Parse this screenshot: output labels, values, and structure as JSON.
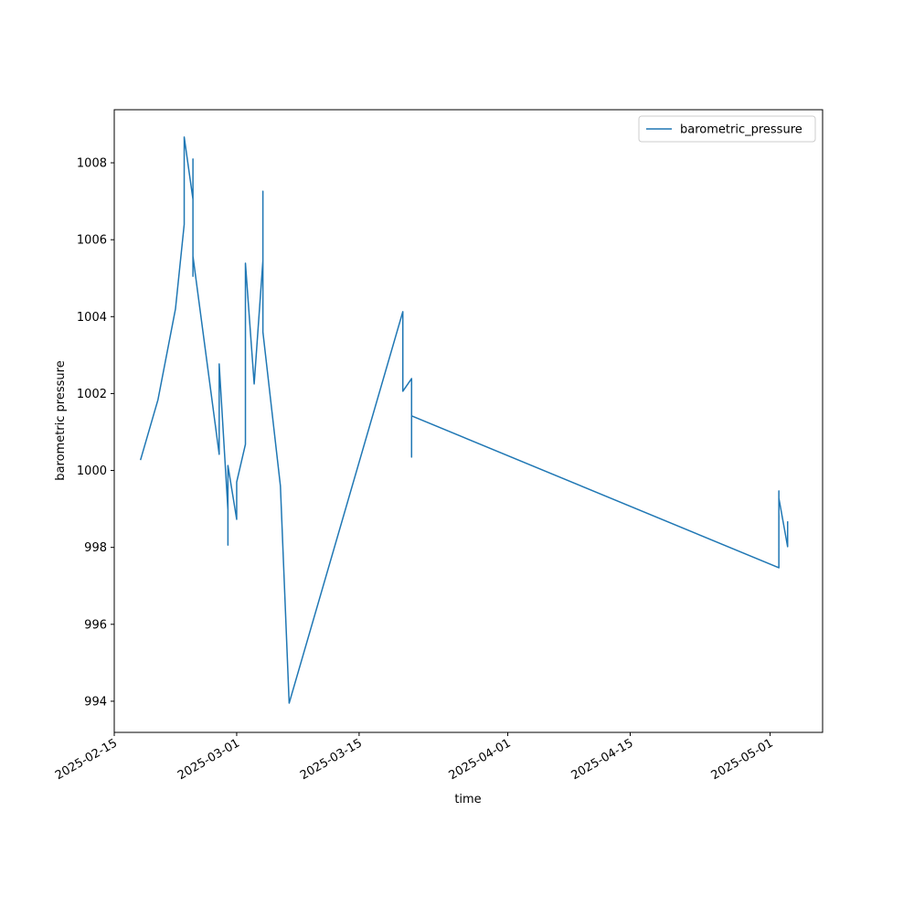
{
  "chart_data": {
    "type": "line",
    "xlabel": "time",
    "ylabel": "barometric pressure",
    "x": [
      "2025-02-18",
      "2025-02-20",
      "2025-02-22",
      "2025-02-23",
      "2025-02-23",
      "2025-02-24",
      "2025-02-24",
      "2025-02-24",
      "2025-02-24",
      "2025-02-27",
      "2025-02-27",
      "2025-02-27",
      "2025-02-27",
      "2025-02-28",
      "2025-02-28",
      "2025-02-28",
      "2025-02-28",
      "2025-02-28",
      "2025-03-01",
      "2025-03-01",
      "2025-03-02",
      "2025-03-02",
      "2025-03-02",
      "2025-03-02",
      "2025-03-02",
      "2025-03-02",
      "2025-03-02",
      "2025-03-02",
      "2025-03-03",
      "2025-03-04",
      "2025-03-04",
      "2025-03-04",
      "2025-03-04",
      "2025-03-06",
      "2025-03-07",
      "2025-03-20",
      "2025-03-20",
      "2025-03-21",
      "2025-03-21",
      "2025-03-21",
      "2025-05-02",
      "2025-05-02",
      "2025-05-02",
      "2025-05-03",
      "2025-05-03"
    ],
    "series": [
      {
        "name": "barometric_pressure",
        "color": "#1f77b4",
        "values": [
          1000.27,
          1001.84,
          1004.2,
          1006.4,
          1008.67,
          1007.05,
          1008.1,
          1005.05,
          1005.57,
          1000.42,
          1001.35,
          1000.9,
          1002.77,
          998.97,
          999.37,
          999.04,
          998.06,
          1000.13,
          998.73,
          999.7,
          1000.68,
          1002.15,
          1001.7,
          1002.82,
          1002.49,
          1004.08,
          1003.79,
          1005.39,
          1002.25,
          1005.46,
          1007.26,
          1004.46,
          1003.6,
          999.6,
          993.95,
          1004.13,
          1002.06,
          1002.39,
          1000.35,
          1001.42,
          997.47,
          999.47,
          999.28,
          998.02,
          998.68
        ]
      }
    ],
    "xlim": [
      "2025-02-15",
      "2025-05-07"
    ],
    "xticks": [
      "2025-02-15",
      "2025-03-01",
      "2025-03-15",
      "2025-04-01",
      "2025-04-15",
      "2025-05-01"
    ],
    "ylim": [
      993.19,
      1009.38
    ],
    "yticks": [
      994,
      996,
      998,
      1000,
      1002,
      1004,
      1006,
      1008
    ],
    "legend": "upper right"
  }
}
